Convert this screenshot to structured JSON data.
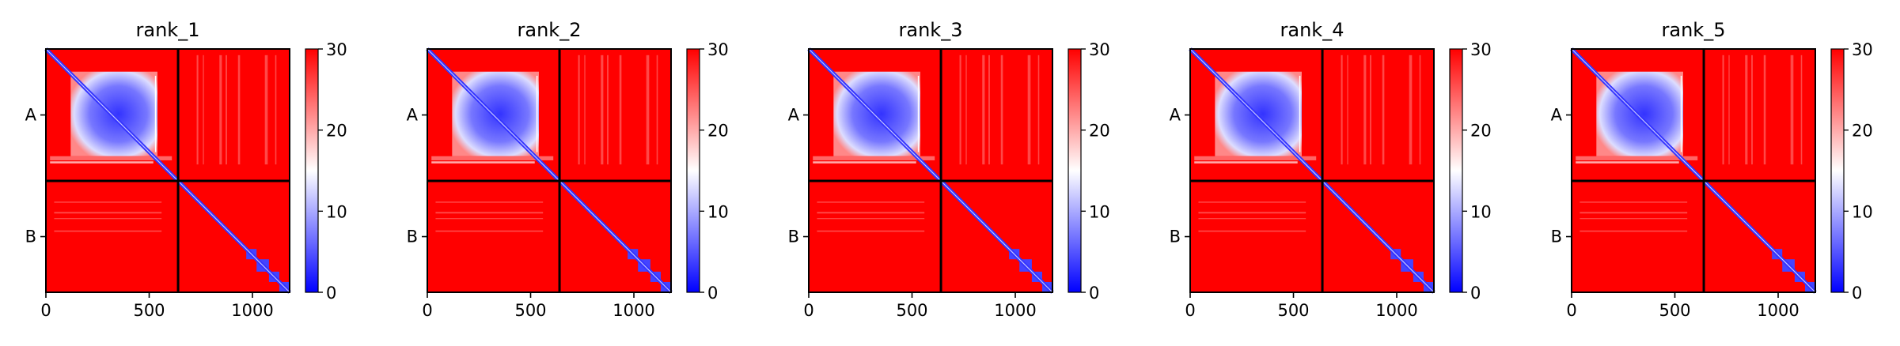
{
  "chart_data": {
    "type": "heatmap",
    "colormap": {
      "name": "bwr",
      "low": "#0000ff",
      "mid": "#ffffff",
      "high": "#ff0000"
    },
    "colorbar": {
      "range": [
        0,
        30
      ],
      "ticks": [
        "0",
        "10",
        "20",
        "30"
      ]
    },
    "x_range": [
      0,
      1180
    ],
    "chain_boundary": 640,
    "xticks": [
      {
        "value": 0,
        "label": "0"
      },
      {
        "value": 500,
        "label": "500"
      },
      {
        "value": 1000,
        "label": "1000"
      }
    ],
    "yticks": [
      {
        "value": 320,
        "label": "A"
      },
      {
        "value": 910,
        "label": "B"
      }
    ],
    "panels": [
      {
        "title": "rank_1"
      },
      {
        "title": "rank_2"
      },
      {
        "title": "rank_3"
      },
      {
        "title": "rank_4"
      },
      {
        "title": "rank_5"
      }
    ]
  }
}
